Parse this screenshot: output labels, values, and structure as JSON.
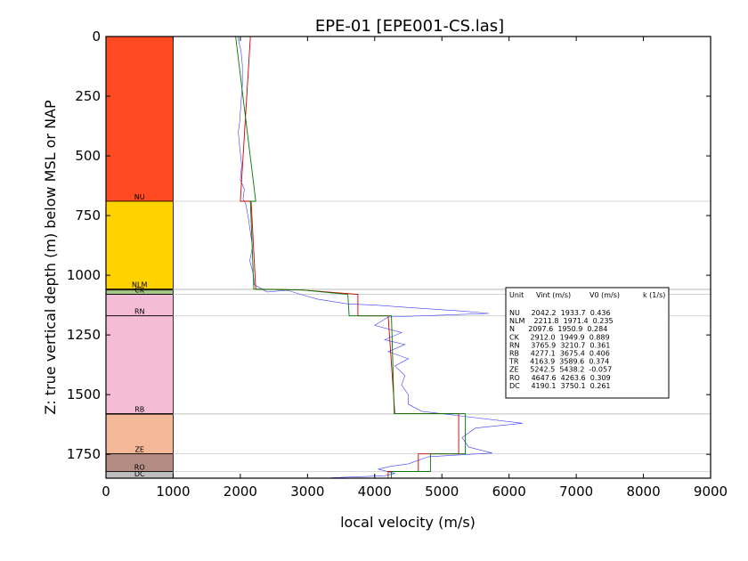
{
  "chart_data": {
    "type": "line",
    "title": "EPE-01 [EPE001-CS.las]",
    "xlabel": "local velocity (m/s)",
    "ylabel": "Z: true vertical depth (m) below MSL or NAP",
    "xlim": [
      0,
      9000
    ],
    "ylim": [
      1850,
      0
    ],
    "xticks": [
      0,
      1000,
      2000,
      3000,
      4000,
      5000,
      6000,
      7000,
      8000,
      9000
    ],
    "yticks": [
      0,
      250,
      500,
      750,
      1000,
      1250,
      1500,
      1750
    ],
    "grid": false,
    "units": [
      {
        "name": "NU",
        "top": 0,
        "bottom": 690,
        "color": "#ff4a22",
        "vint": 2042.2,
        "v0": 1933.7,
        "k": 0.436
      },
      {
        "name": "NLM",
        "top": 690,
        "bottom": 1058,
        "color": "#ffd200",
        "vint": 2211.8,
        "v0": 1971.4,
        "k": 0.235
      },
      {
        "name": "N",
        "top": 1058,
        "bottom": 1062,
        "color": "#ffe97a",
        "vint": 2097.6,
        "v0": 1950.9,
        "k": 0.284
      },
      {
        "name": "CK",
        "top": 1062,
        "bottom": 1080,
        "color": "#a8c88a",
        "vint": 2912.0,
        "v0": 1949.9,
        "k": 0.889
      },
      {
        "name": "RN",
        "top": 1080,
        "bottom": 1170,
        "color": "#f4bcd6",
        "vint": 3765.9,
        "v0": 3210.7,
        "k": 0.361
      },
      {
        "name": "RB",
        "top": 1170,
        "bottom": 1580,
        "color": "#f4bcd6",
        "vint": 4277.1,
        "v0": 3675.4,
        "k": 0.406
      },
      {
        "name": "TR",
        "top": 1580,
        "bottom": 1582,
        "color": "#f3a8a0",
        "vint": 4163.9,
        "v0": 3589.6,
        "k": 0.374
      },
      {
        "name": "ZE",
        "top": 1582,
        "bottom": 1748,
        "color": "#f3b898",
        "vint": 5242.5,
        "v0": 5438.2,
        "k": -0.057
      },
      {
        "name": "RO",
        "top": 1748,
        "bottom": 1822,
        "color": "#b48c84",
        "vint": 4647.6,
        "v0": 4263.6,
        "k": 0.309
      },
      {
        "name": "DC",
        "top": 1822,
        "bottom": 1850,
        "color": "#bdbdbd",
        "vint": 4190.1,
        "v0": 3750.1,
        "k": 0.261
      }
    ],
    "series": [
      {
        "color": "#3b3bff",
        "points": [
          [
            1960,
            0
          ],
          [
            2010,
            60
          ],
          [
            2030,
            120
          ],
          [
            2030,
            200
          ],
          [
            2010,
            280
          ],
          [
            1990,
            360
          ],
          [
            1970,
            400
          ],
          [
            1990,
            460
          ],
          [
            2020,
            540
          ],
          [
            2000,
            600
          ],
          [
            2060,
            640
          ],
          [
            2040,
            680
          ],
          [
            2080,
            700
          ],
          [
            2120,
            760
          ],
          [
            2150,
            820
          ],
          [
            2180,
            880
          ],
          [
            2140,
            940
          ],
          [
            2190,
            990
          ],
          [
            2210,
            1040
          ],
          [
            2400,
            1070
          ],
          [
            2700,
            1063
          ],
          [
            2900,
            1080
          ],
          [
            3150,
            1100
          ],
          [
            3600,
            1120
          ],
          [
            4000,
            1125
          ],
          [
            4500,
            1135
          ],
          [
            5300,
            1150
          ],
          [
            5700,
            1160
          ],
          [
            4200,
            1175
          ],
          [
            4000,
            1210
          ],
          [
            4400,
            1240
          ],
          [
            4150,
            1270
          ],
          [
            4450,
            1290
          ],
          [
            4200,
            1320
          ],
          [
            4500,
            1350
          ],
          [
            4300,
            1380
          ],
          [
            4450,
            1420
          ],
          [
            4400,
            1460
          ],
          [
            4500,
            1500
          ],
          [
            4500,
            1540
          ],
          [
            4700,
            1570
          ],
          [
            5000,
            1580
          ],
          [
            6200,
            1620
          ],
          [
            5500,
            1640
          ],
          [
            5300,
            1680
          ],
          [
            5400,
            1720
          ],
          [
            5750,
            1745
          ],
          [
            4800,
            1760
          ],
          [
            4500,
            1790
          ],
          [
            4250,
            1800
          ],
          [
            4050,
            1812
          ],
          [
            4300,
            1830
          ],
          [
            4150,
            1840
          ],
          [
            3350,
            1848
          ]
        ]
      },
      {
        "color": "#cc0000",
        "points": [
          [
            2150,
            0
          ],
          [
            2000,
            690
          ],
          [
            2160,
            690
          ],
          [
            2230,
            1058
          ],
          [
            2930,
            1062
          ],
          [
            3750,
            1080
          ],
          [
            3750,
            1170
          ],
          [
            4200,
            1170
          ],
          [
            4300,
            1580
          ],
          [
            5250,
            1580
          ],
          [
            5250,
            1748
          ],
          [
            4650,
            1748
          ],
          [
            4650,
            1822
          ],
          [
            4200,
            1822
          ],
          [
            4200,
            1850
          ]
        ]
      },
      {
        "color": "#007700",
        "points": [
          [
            1930,
            0
          ],
          [
            2230,
            690
          ],
          [
            2150,
            690
          ],
          [
            2200,
            1058
          ],
          [
            2930,
            1062
          ],
          [
            3600,
            1080
          ],
          [
            3620,
            1170
          ],
          [
            4250,
            1170
          ],
          [
            4290,
            1580
          ],
          [
            5350,
            1580
          ],
          [
            5350,
            1748
          ],
          [
            4830,
            1748
          ],
          [
            4830,
            1822
          ],
          [
            4250,
            1822
          ],
          [
            4250,
            1850
          ]
        ]
      }
    ],
    "table": {
      "header": [
        "Unit",
        "Vint (m/s)",
        "V0 (m/s)",
        "k (1/s)"
      ],
      "rows": [
        "NU     2042.2  1933.7  0.436",
        "NLM    2211.8  1971.4  0.235",
        "N      2097.6  1950.9  0.284",
        "CK     2912.0  1949.9  0.889",
        "RN     3765.9  3210.7  0.361",
        "RB     4277.1  3675.4  0.406",
        "TR     4163.9  3589.6  0.374",
        "ZE     5242.5  5438.2  -0.057",
        "RO     4647.6  4263.6  0.309",
        "DC     4190.1  3750.1  0.261"
      ]
    },
    "unit_labels": [
      "NU",
      "NLM",
      "CK",
      "RN",
      "RB",
      "ZE",
      "RO",
      "DC"
    ]
  }
}
